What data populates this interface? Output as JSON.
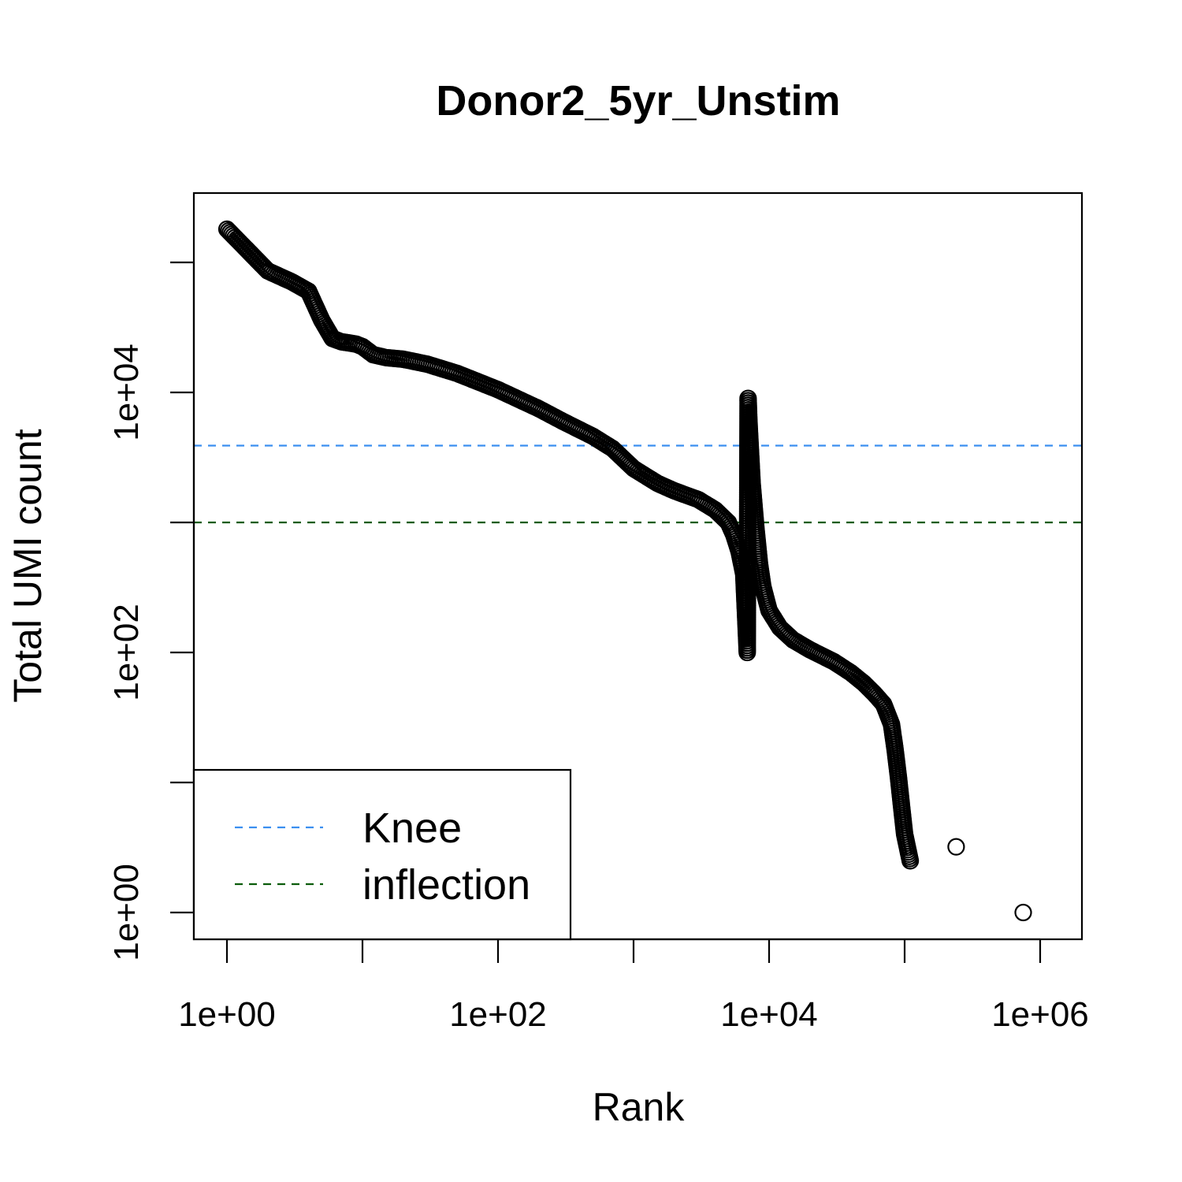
{
  "chart_data": {
    "type": "scatter",
    "title": "Donor2_5yr_Unstim",
    "xlabel": "Rank",
    "ylabel": "Total UMI count",
    "x_scale": "log",
    "y_scale": "log",
    "xlim": [
      0.57,
      2200000
    ],
    "ylim": [
      0.6,
      120000
    ],
    "x_ticks": [
      1,
      10,
      100,
      1000,
      10000,
      100000,
      1000000
    ],
    "x_tick_labels": [
      "1e+00",
      "",
      "1e+02",
      "",
      "1e+04",
      "",
      "1e+06"
    ],
    "y_ticks": [
      1,
      10,
      100,
      1000,
      10000,
      100000
    ],
    "y_tick_labels": [
      "1e+00",
      "",
      "1e+02",
      "",
      "1e+04",
      ""
    ],
    "grid": false,
    "legend_position": "bottom-left",
    "reference_lines": [
      {
        "name": "Knee",
        "y": 3900,
        "color": "#3b8ff0",
        "style": "dashed"
      },
      {
        "name": "inflection",
        "y": 1000,
        "color": "#0a5c0a",
        "style": "dashed"
      }
    ],
    "curve": [
      [
        1,
        180000
      ],
      [
        2,
        86000
      ],
      [
        3,
        71000
      ],
      [
        4,
        60000
      ],
      [
        5,
        36000
      ],
      [
        6,
        26000
      ],
      [
        7,
        24500
      ],
      [
        8,
        24000
      ],
      [
        9,
        23500
      ],
      [
        10,
        22500
      ],
      [
        12,
        19500
      ],
      [
        15,
        18500
      ],
      [
        20,
        18000
      ],
      [
        30,
        16500
      ],
      [
        50,
        14000
      ],
      [
        100,
        10500
      ],
      [
        200,
        7500
      ],
      [
        300,
        6000
      ],
      [
        500,
        4600
      ],
      [
        700,
        3700
      ],
      [
        1000,
        2600
      ],
      [
        1500,
        2000
      ],
      [
        2000,
        1750
      ],
      [
        3000,
        1500
      ],
      [
        4000,
        1250
      ],
      [
        5000,
        1000
      ],
      [
        5500,
        800
      ],
      [
        6000,
        600
      ],
      [
        6500,
        400
      ],
      [
        6900,
        100
      ],
      [
        7000,
        9000
      ],
      [
        7100,
        6000
      ],
      [
        7500,
        2000
      ],
      [
        8000,
        900
      ],
      [
        8500,
        480
      ],
      [
        9000,
        320
      ],
      [
        10000,
        210
      ],
      [
        12000,
        155
      ],
      [
        15000,
        125
      ],
      [
        20000,
        105
      ],
      [
        30000,
        85
      ],
      [
        40000,
        70
      ],
      [
        50000,
        58
      ],
      [
        60000,
        48
      ],
      [
        70000,
        40
      ],
      [
        80000,
        28
      ],
      [
        85000,
        18
      ],
      [
        90000,
        11
      ],
      [
        95000,
        6.5
      ],
      [
        100000,
        4
      ],
      [
        110000,
        2.5
      ]
    ],
    "outlier_points": [
      [
        240000,
        3.2
      ],
      [
        750000,
        1.0
      ]
    ]
  }
}
